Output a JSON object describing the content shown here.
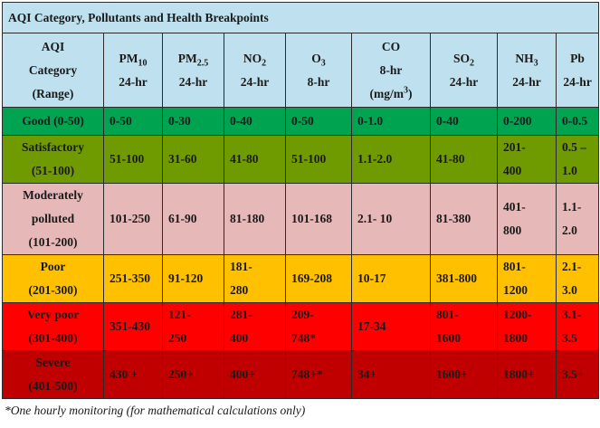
{
  "title": "AQI Category, Pollutants and Health Breakpoints",
  "headers": {
    "category": [
      "AQI",
      "Category",
      "(Range)"
    ],
    "pm10": {
      "base": "PM",
      "sub": "10",
      "period": "24-hr"
    },
    "pm25": {
      "base": "PM",
      "sub": "2.5",
      "period": "24-hr"
    },
    "no2": {
      "base": "NO",
      "sub": "2",
      "period": "24-hr"
    },
    "o3": {
      "base": "O",
      "sub": "3",
      "period": "8-hr"
    },
    "co": {
      "base": "CO",
      "period": "8-hr",
      "unit_base": "(mg/m",
      "unit_sup": "3",
      "unit_end": ")"
    },
    "so2": {
      "base": "SO",
      "sub": "2",
      "period": "24-hr"
    },
    "nh3": {
      "base": "NH",
      "sub": "3",
      "period": "24-hr"
    },
    "pb": {
      "base": "Pb",
      "period": "24-hr"
    }
  },
  "rows": [
    {
      "category": [
        "Good (0-50)"
      ],
      "values": [
        [
          "0-50"
        ],
        [
          "0-30"
        ],
        [
          "0-40"
        ],
        [
          "0-50"
        ],
        [
          "0-1.0"
        ],
        [
          "0-40"
        ],
        [
          "0-200"
        ],
        [
          "0-0.5"
        ]
      ]
    },
    {
      "category": [
        "Satisfactory",
        "(51-100)"
      ],
      "values": [
        [
          "51-100"
        ],
        [
          "31-60"
        ],
        [
          "41-80"
        ],
        [
          "51-100"
        ],
        [
          "1.1-2.0"
        ],
        [
          "41-80"
        ],
        [
          "201-",
          "400"
        ],
        [
          "0.5 –",
          "1.0"
        ]
      ]
    },
    {
      "category": [
        "Moderately",
        "polluted",
        "(101-200)"
      ],
      "values": [
        [
          "101-250"
        ],
        [
          "61-90"
        ],
        [
          "81-180"
        ],
        [
          "101-168"
        ],
        [
          "2.1- 10"
        ],
        [
          "81-380"
        ],
        [
          "401-",
          "800"
        ],
        [
          "1.1-2.0"
        ]
      ]
    },
    {
      "category": [
        "Poor",
        "(201-300)"
      ],
      "values": [
        [
          "251-350"
        ],
        [
          "91-120"
        ],
        [
          "181-",
          "280"
        ],
        [
          "169-208"
        ],
        [
          "10-17"
        ],
        [
          "381-800"
        ],
        [
          "801-",
          "1200"
        ],
        [
          "2.1-3.0"
        ]
      ]
    },
    {
      "category": [
        "Very poor",
        "(301-400)"
      ],
      "values": [
        [
          "351-430"
        ],
        [
          "121-",
          "250"
        ],
        [
          "281-",
          "400"
        ],
        [
          "209-",
          "748*"
        ],
        [
          "17-34"
        ],
        [
          "801-",
          "1600"
        ],
        [
          "1200-",
          "1800"
        ],
        [
          "3.1-3.5"
        ]
      ]
    },
    {
      "category": [
        "Severe",
        "(401-500)"
      ],
      "values": [
        [
          "430 +"
        ],
        [
          "250+"
        ],
        [
          "400+"
        ],
        [
          "748+*"
        ],
        [
          "34+"
        ],
        [
          "1600+"
        ],
        [
          "1800+"
        ],
        [
          "3.5+"
        ]
      ]
    }
  ],
  "row_colors": [
    "#00a350",
    "#6f9a00",
    "#e6b8b8",
    "#ffc000",
    "#ff0000",
    "#c00000"
  ],
  "footnote": "*One hourly monitoring (for mathematical calculations only)"
}
